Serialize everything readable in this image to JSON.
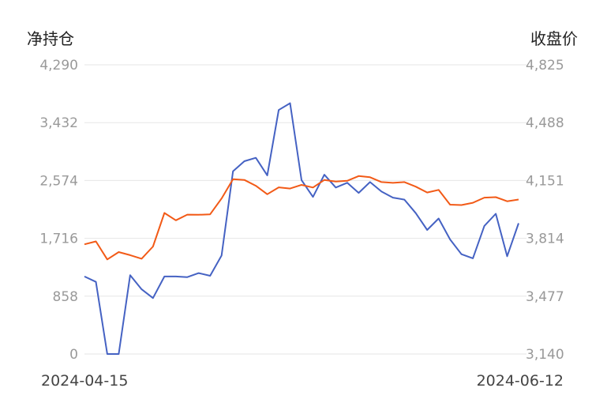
{
  "chart_data": {
    "type": "line",
    "left_axis": {
      "title": "净持仓",
      "ticks": [
        "4,290",
        "3,432",
        "2,574",
        "1,716",
        "858",
        "0"
      ],
      "range": [
        0,
        4290
      ]
    },
    "right_axis": {
      "title": "收盘价",
      "ticks": [
        "4,825",
        "4,488",
        "4,151",
        "3,814",
        "3,477",
        "3,140"
      ],
      "range": [
        3140,
        4825
      ]
    },
    "x_labels": {
      "start": "2024-04-15",
      "end": "2024-06-12"
    },
    "grid": true,
    "colors": {
      "net_position": "#4562c3",
      "close_price": "#f25a17"
    },
    "series": [
      {
        "axis": "left",
        "color": "#4562c3",
        "values": [
          1150,
          1070,
          0,
          0,
          1170,
          960,
          830,
          1150,
          1150,
          1140,
          1200,
          1160,
          1460,
          2710,
          2860,
          2910,
          2650,
          3620,
          3720,
          2580,
          2330,
          2660,
          2470,
          2540,
          2390,
          2550,
          2410,
          2320,
          2290,
          2090,
          1840,
          2010,
          1700,
          1480,
          1420,
          1900,
          2080,
          1450,
          1940
        ]
      },
      {
        "axis": "right",
        "color": "#f25a17",
        "values": [
          3779,
          3796,
          3691,
          3734,
          3716,
          3695,
          3766,
          3962,
          3919,
          3952,
          3951,
          3954,
          4046,
          4159,
          4154,
          4120,
          4071,
          4111,
          4104,
          4125,
          4110,
          4154,
          4145,
          4149,
          4177,
          4170,
          4142,
          4137,
          4142,
          4115,
          4081,
          4096,
          4010,
          4008,
          4021,
          4051,
          4054,
          4030,
          4040
        ]
      }
    ]
  }
}
